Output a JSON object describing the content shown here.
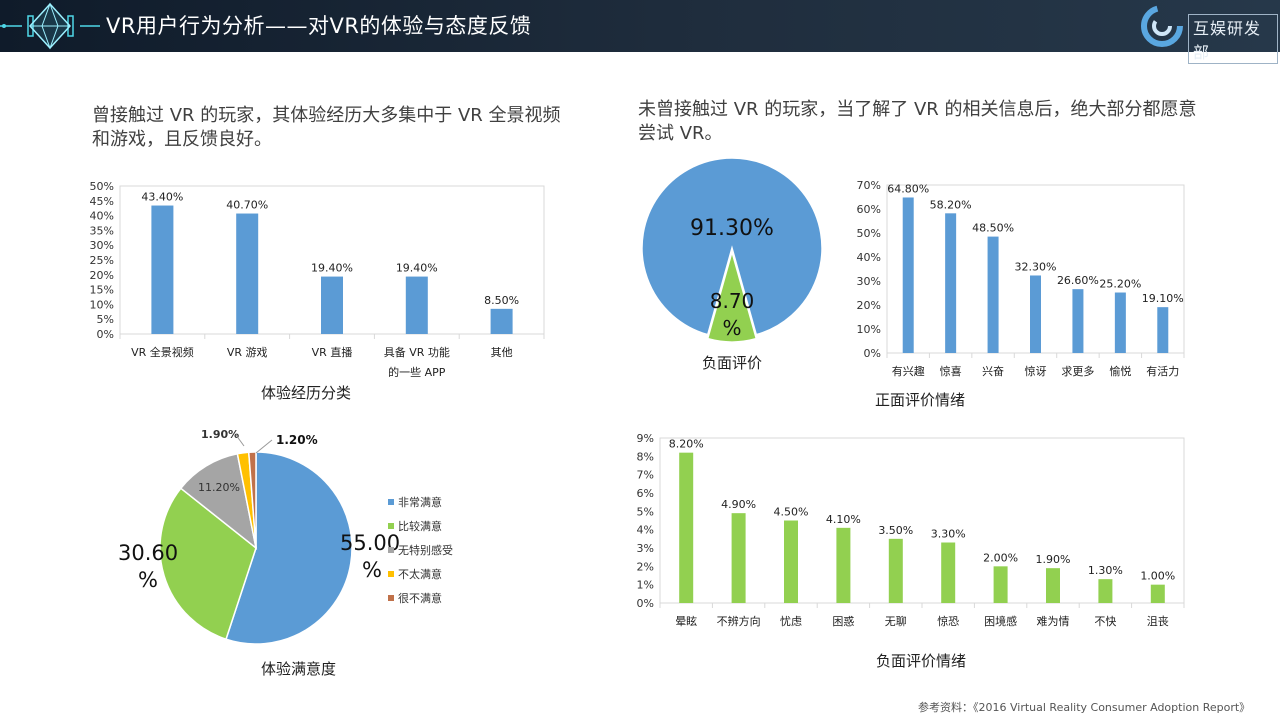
{
  "header": {
    "title": "VR用户行为分析——对VR的体验与态度反馈",
    "brand": "互娱研发部"
  },
  "left_intro": "曾接触过 VR 的玩家，其体验经历大多集中于 VR 全景视频和游戏，且反馈良好。",
  "right_intro": "未曾接触过 VR 的玩家，当了解了 VR 的相关信息后，绝大部分都愿意尝试 VR。",
  "footer": "参考资料：《2016 Virtual Reality Consumer Adoption Report》",
  "colors": {
    "blue": "#5b9bd5",
    "green": "#92d050",
    "gray": "#a5a5a5",
    "yellow": "#ffc000",
    "brown": "#c0714a"
  },
  "chart_data": [
    {
      "id": "experience",
      "type": "bar",
      "title": "体验经历分类",
      "categories": [
        "VR 全景视频",
        "VR 游戏",
        "VR 直播",
        "具备 VR 功能\n的一些 APP",
        "其他"
      ],
      "values": [
        43.4,
        40.7,
        19.4,
        19.4,
        8.5
      ],
      "labels": [
        "43.40%",
        "40.70%",
        "19.40%",
        "19.40%",
        "8.50%"
      ],
      "yticks": [
        "0%",
        "5%",
        "10%",
        "15%",
        "20%",
        "25%",
        "30%",
        "35%",
        "40%",
        "45%",
        "50%"
      ],
      "ylim": [
        0,
        50
      ],
      "color": "#5b9bd5"
    },
    {
      "id": "satisfaction",
      "type": "pie",
      "title": "体验满意度",
      "categories": [
        "非常满意",
        "比较满意",
        "无特别感受",
        "不太满意",
        "很不满意"
      ],
      "values": [
        55.0,
        30.6,
        11.2,
        1.9,
        1.2
      ],
      "labels": [
        "55.00%",
        "30.60%",
        "11.20%",
        "1.90%",
        "1.20%"
      ],
      "colors": [
        "#5b9bd5",
        "#92d050",
        "#a5a5a5",
        "#ffc000",
        "#c0714a"
      ],
      "legend": "right"
    },
    {
      "id": "willingness",
      "type": "pie",
      "title": "",
      "categories": [
        "",
        "负面评价"
      ],
      "values": [
        91.3,
        8.7
      ],
      "labels": [
        "91.30%",
        "8.70%"
      ],
      "colors": [
        "#5b9bd5",
        "#92d050"
      ]
    },
    {
      "id": "positive",
      "type": "bar",
      "title": "正面评价情绪",
      "categories": [
        "有兴趣",
        "惊喜",
        "兴奋",
        "惊讶",
        "求更多",
        "愉悦",
        "有活力"
      ],
      "values": [
        64.8,
        58.2,
        48.5,
        32.3,
        26.6,
        25.2,
        19.1
      ],
      "labels": [
        "64.80%",
        "58.20%",
        "48.50%",
        "32.30%",
        "26.60%",
        "25.20%",
        "19.10%"
      ],
      "yticks": [
        "0%",
        "10%",
        "20%",
        "30%",
        "40%",
        "50%",
        "60%",
        "70%"
      ],
      "ylim": [
        0,
        70
      ],
      "color": "#5b9bd5"
    },
    {
      "id": "negative",
      "type": "bar",
      "title": "负面评价情绪",
      "categories": [
        "晕眩",
        "不辨方向",
        "忧虑",
        "困惑",
        "无聊",
        "惊恐",
        "困境感",
        "难为情",
        "不快",
        "沮丧"
      ],
      "values": [
        8.2,
        4.9,
        4.5,
        4.1,
        3.5,
        3.3,
        2.0,
        1.9,
        1.3,
        1.0
      ],
      "labels": [
        "8.20%",
        "4.90%",
        "4.50%",
        "4.10%",
        "3.50%",
        "3.30%",
        "2.00%",
        "1.90%",
        "1.30%",
        "1.00%"
      ],
      "yticks": [
        "0%",
        "1%",
        "2%",
        "3%",
        "4%",
        "5%",
        "6%",
        "7%",
        "8%",
        "9%"
      ],
      "ylim": [
        0,
        9
      ],
      "color": "#92d050"
    }
  ]
}
